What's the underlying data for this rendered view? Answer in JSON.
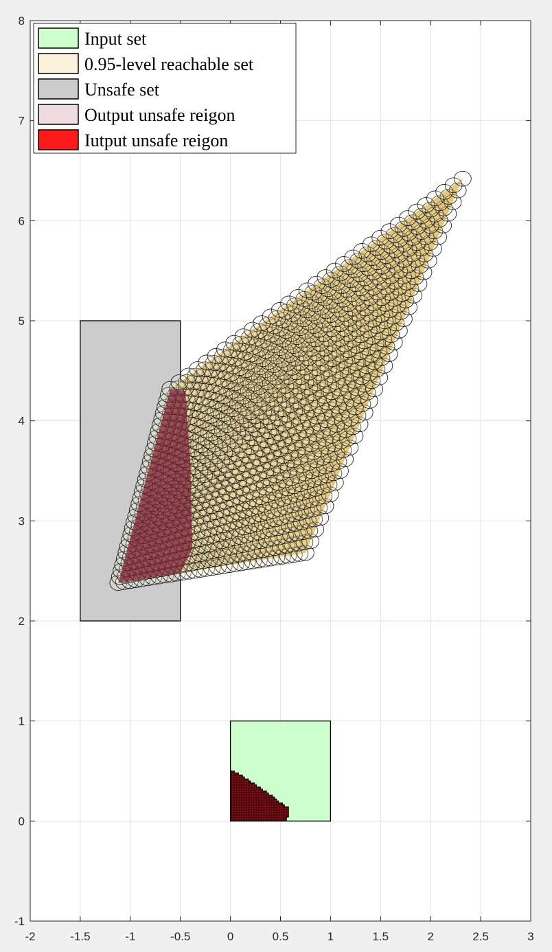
{
  "chart_data": {
    "type": "region-plot",
    "title": "",
    "xlabel": "",
    "ylabel": "",
    "xlim": [
      -2,
      3
    ],
    "ylim": [
      -1,
      8
    ],
    "xticks": [
      -2,
      -1.5,
      -1,
      -0.5,
      0,
      0.5,
      1,
      1.5,
      2,
      2.5,
      3
    ],
    "yticks": [
      -1,
      0,
      1,
      2,
      3,
      4,
      5,
      6,
      7,
      8
    ],
    "xtick_labels": [
      "-2",
      "-1.5",
      "-1",
      "-0.5",
      "0",
      "0.5",
      "1",
      "1.5",
      "2",
      "2.5",
      "3"
    ],
    "ytick_labels": [
      "-1",
      "0",
      "1",
      "2",
      "3",
      "4",
      "5",
      "6",
      "7",
      "8"
    ],
    "grid": true,
    "legend_position": "top-left",
    "legend": [
      {
        "label": "Input set",
        "color": "#ccffcc"
      },
      {
        "label": "0.95-level reachable set",
        "color": "#fbf2dc"
      },
      {
        "label": "Unsafe set",
        "color": "#cccccc"
      },
      {
        "label": "Output unsafe reigon",
        "color": "#eedcdf"
      },
      {
        "label": "Iutput unsafe reigon",
        "color": "#ff1a1a"
      }
    ],
    "input_set": {
      "x": [
        0,
        1
      ],
      "y": [
        0,
        1
      ],
      "color": "#ccffcc"
    },
    "unsafe_set": {
      "x": [
        -1.5,
        -0.5
      ],
      "y": [
        2,
        5
      ],
      "color": "#cccccc"
    },
    "input_unsafe_region": {
      "color": "#7a0a14",
      "boundary": [
        [
          0,
          0.5
        ],
        [
          0.1,
          0.45
        ],
        [
          0.25,
          0.35
        ],
        [
          0.4,
          0.25
        ],
        [
          0.5,
          0.17
        ],
        [
          0.58,
          0.12
        ],
        [
          0.58,
          0.04
        ],
        [
          0.55,
          0
        ]
      ]
    },
    "reachable_set": {
      "fill_color": "#d9b24a",
      "ellipse_fill": "#fbf2dc",
      "ellipse_rx": 0.085,
      "ellipse_ry": 0.075,
      "corners": {
        "p00": [
          -1.12,
          2.38
        ],
        "p10": [
          0.75,
          2.68
        ],
        "p01": [
          -0.6,
          4.32
        ],
        "p11": [
          2.32,
          6.42
        ]
      },
      "grid_steps": 32
    },
    "output_unsafe_region": {
      "fill_color": "#7a1e36",
      "polygon": [
        [
          -1.12,
          2.38
        ],
        [
          -0.5,
          2.48
        ],
        [
          -0.38,
          2.72
        ],
        [
          -0.4,
          3.6
        ],
        [
          -0.45,
          4.3
        ],
        [
          -0.6,
          4.32
        ]
      ]
    }
  }
}
